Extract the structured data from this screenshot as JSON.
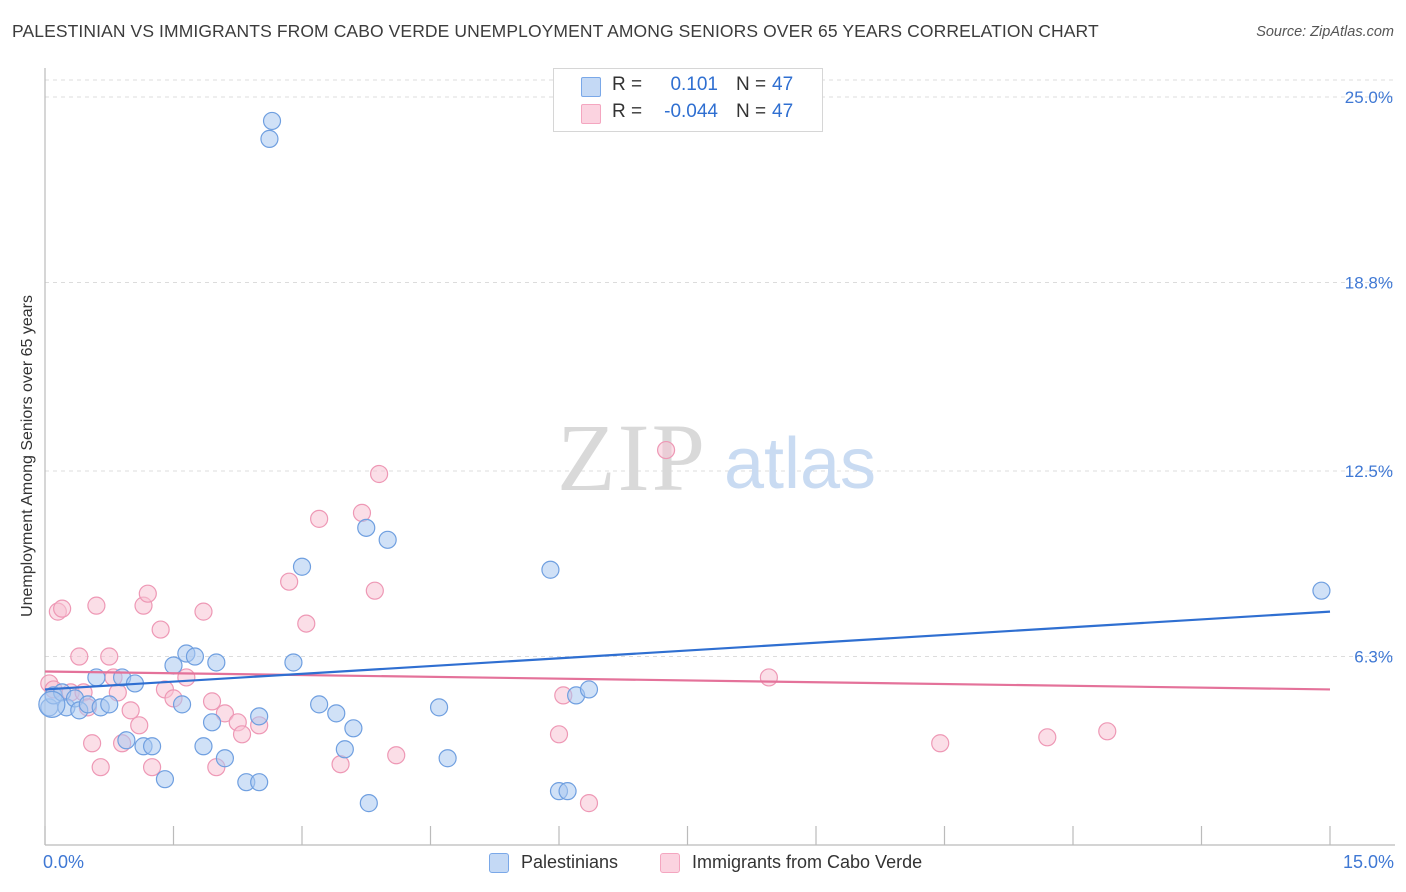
{
  "header": {
    "title": "PALESTINIAN VS IMMIGRANTS FROM CABO VERDE UNEMPLOYMENT AMONG SENIORS OVER 65 YEARS CORRELATION CHART",
    "source": "Source: ZipAtlas.com"
  },
  "watermark": {
    "zip": "ZIP",
    "atlas": "atlas"
  },
  "legend_top": {
    "rows": [
      {
        "r_label": "R =",
        "r_value": "0.101",
        "n_label": "N =",
        "n_value": "47",
        "color": "#7aa8e8"
      },
      {
        "r_label": "R =",
        "r_value": "-0.044",
        "n_label": "N =",
        "n_value": "47",
        "color": "#f4a6c0"
      }
    ]
  },
  "colors": {
    "blue_fill": "#aac8f0",
    "blue_stroke": "#6f9fe0",
    "blue_line": "#2f6fd1",
    "pink_fill": "#f8c3d4",
    "pink_stroke": "#ee98b5",
    "pink_line": "#e4729a",
    "tick_label": "#3f78d4",
    "grid": "#dcdcdc"
  },
  "chart_data": {
    "type": "scatter",
    "title": "PALESTINIAN VS IMMIGRANTS FROM CABO VERDE UNEMPLOYMENT AMONG SENIORS OVER 65 YEARS CORRELATION CHART",
    "xlabel": "",
    "ylabel": "Unemployment Among Seniors over 65 years",
    "xlim": [
      0,
      15
    ],
    "ylim": [
      0,
      25
    ],
    "x_tick_labels": [
      "0.0%",
      "15.0%"
    ],
    "y_ticks": [
      25.0,
      18.8,
      12.5,
      6.3
    ],
    "y_tick_labels": [
      "25.0%",
      "18.8%",
      "12.5%",
      "6.3%"
    ],
    "grid": true,
    "legend": "bottom-center",
    "series": [
      {
        "name": "Palestinians",
        "r": 0.101,
        "n": 47,
        "trend": [
          [
            0,
            5.2
          ],
          [
            15,
            7.8
          ]
        ],
        "points": [
          [
            0.05,
            4.6
          ],
          [
            0.1,
            5.0
          ],
          [
            0.2,
            5.1
          ],
          [
            0.25,
            4.6
          ],
          [
            0.35,
            4.9
          ],
          [
            0.4,
            4.5
          ],
          [
            0.5,
            4.7
          ],
          [
            0.6,
            5.6
          ],
          [
            0.65,
            4.6
          ],
          [
            0.75,
            4.7
          ],
          [
            0.9,
            5.6
          ],
          [
            0.95,
            3.5
          ],
          [
            1.05,
            5.4
          ],
          [
            1.15,
            3.3
          ],
          [
            1.25,
            3.3
          ],
          [
            1.4,
            2.2
          ],
          [
            1.5,
            6.0
          ],
          [
            1.6,
            4.7
          ],
          [
            1.65,
            6.4
          ],
          [
            1.75,
            6.3
          ],
          [
            1.85,
            3.3
          ],
          [
            1.95,
            4.1
          ],
          [
            2.0,
            6.1
          ],
          [
            2.1,
            2.9
          ],
          [
            2.35,
            2.1
          ],
          [
            2.5,
            2.1
          ],
          [
            2.5,
            4.3
          ],
          [
            2.62,
            23.6
          ],
          [
            2.65,
            24.2
          ],
          [
            2.9,
            6.1
          ],
          [
            3.0,
            9.3
          ],
          [
            3.2,
            4.7
          ],
          [
            3.4,
            4.4
          ],
          [
            3.5,
            3.2
          ],
          [
            3.6,
            3.9
          ],
          [
            3.75,
            10.6
          ],
          [
            3.78,
            1.4
          ],
          [
            4.0,
            10.2
          ],
          [
            4.6,
            4.6
          ],
          [
            4.7,
            2.9
          ],
          [
            5.9,
            9.2
          ],
          [
            6.0,
            1.8
          ],
          [
            6.1,
            1.8
          ],
          [
            6.2,
            5.0
          ],
          [
            6.35,
            5.2
          ],
          [
            14.9,
            8.5
          ],
          [
            0.08,
            4.7
          ]
        ]
      },
      {
        "name": "Immigrants from Cabo Verde",
        "r": -0.044,
        "n": 47,
        "trend": [
          [
            0,
            5.8
          ],
          [
            15,
            5.2
          ]
        ],
        "points": [
          [
            0.05,
            5.4
          ],
          [
            0.1,
            5.2
          ],
          [
            0.15,
            7.8
          ],
          [
            0.2,
            7.9
          ],
          [
            0.3,
            5.1
          ],
          [
            0.4,
            6.3
          ],
          [
            0.45,
            5.1
          ],
          [
            0.5,
            4.6
          ],
          [
            0.55,
            3.4
          ],
          [
            0.6,
            8.0
          ],
          [
            0.65,
            2.6
          ],
          [
            0.75,
            6.3
          ],
          [
            0.8,
            5.6
          ],
          [
            0.85,
            5.1
          ],
          [
            0.9,
            3.4
          ],
          [
            1.0,
            4.5
          ],
          [
            1.1,
            4.0
          ],
          [
            1.15,
            8.0
          ],
          [
            1.2,
            8.4
          ],
          [
            1.25,
            2.6
          ],
          [
            1.35,
            7.2
          ],
          [
            1.4,
            5.2
          ],
          [
            1.5,
            4.9
          ],
          [
            1.65,
            5.6
          ],
          [
            1.85,
            7.8
          ],
          [
            1.95,
            4.8
          ],
          [
            2.0,
            2.6
          ],
          [
            2.1,
            4.4
          ],
          [
            2.25,
            4.1
          ],
          [
            2.3,
            3.7
          ],
          [
            2.5,
            4.0
          ],
          [
            2.85,
            8.8
          ],
          [
            3.05,
            7.4
          ],
          [
            3.2,
            10.9
          ],
          [
            3.45,
            2.7
          ],
          [
            3.7,
            11.1
          ],
          [
            3.85,
            8.5
          ],
          [
            3.9,
            12.4
          ],
          [
            4.1,
            3.0
          ],
          [
            6.0,
            3.7
          ],
          [
            6.05,
            5.0
          ],
          [
            6.35,
            1.4
          ],
          [
            7.25,
            13.2
          ],
          [
            8.45,
            5.6
          ],
          [
            10.45,
            3.4
          ],
          [
            11.7,
            3.6
          ],
          [
            12.4,
            3.8
          ]
        ]
      }
    ]
  },
  "bottom_legend": {
    "items": [
      {
        "label": "Palestinians"
      },
      {
        "label": "Immigrants from Cabo Verde"
      }
    ]
  }
}
